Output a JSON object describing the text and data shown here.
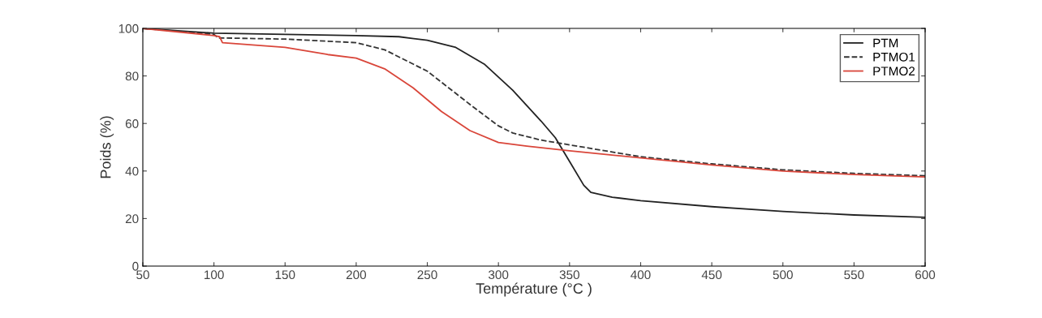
{
  "chart_data": {
    "type": "line",
    "xlabel": "Température (°C )",
    "ylabel": "Poids (%)",
    "xlim": [
      50,
      600
    ],
    "ylim": [
      0,
      100
    ],
    "xticks": [
      50,
      100,
      150,
      200,
      250,
      300,
      350,
      400,
      450,
      500,
      550,
      600
    ],
    "yticks": [
      0,
      20,
      40,
      60,
      80,
      100
    ],
    "grid": false,
    "legend": "top right",
    "series": [
      {
        "name": "PTM",
        "color": "#222222",
        "line_style": "solid",
        "x": [
          50,
          100,
          150,
          200,
          230,
          250,
          270,
          290,
          310,
          330,
          340,
          350,
          360,
          365,
          380,
          400,
          450,
          500,
          550,
          600
        ],
        "values": [
          100,
          98,
          97.5,
          97,
          96.5,
          95,
          92,
          85,
          74,
          61,
          54,
          44,
          34,
          31,
          29,
          27.5,
          25,
          23,
          21.5,
          20.5
        ]
      },
      {
        "name": "PTMO1",
        "color": "#333333",
        "line_style": "dashed",
        "x": [
          50,
          100,
          103,
          150,
          200,
          220,
          250,
          280,
          300,
          310,
          330,
          350,
          380,
          400,
          450,
          500,
          550,
          600
        ],
        "values": [
          100,
          97.5,
          96,
          95.5,
          94,
          91,
          82,
          68,
          59,
          56,
          53,
          51,
          48,
          46,
          43,
          40.5,
          39,
          38
        ]
      },
      {
        "name": "PTMO2",
        "color": "#d9463a",
        "line_style": "solid",
        "x": [
          50,
          100,
          104,
          106,
          150,
          180,
          200,
          220,
          240,
          260,
          280,
          300,
          320,
          350,
          400,
          450,
          500,
          550,
          600
        ],
        "values": [
          100,
          97,
          96.5,
          94,
          92,
          89,
          87.5,
          83,
          75,
          65,
          57,
          52,
          50.5,
          48.5,
          45.5,
          42.5,
          40,
          38.5,
          37.5
        ]
      }
    ]
  }
}
